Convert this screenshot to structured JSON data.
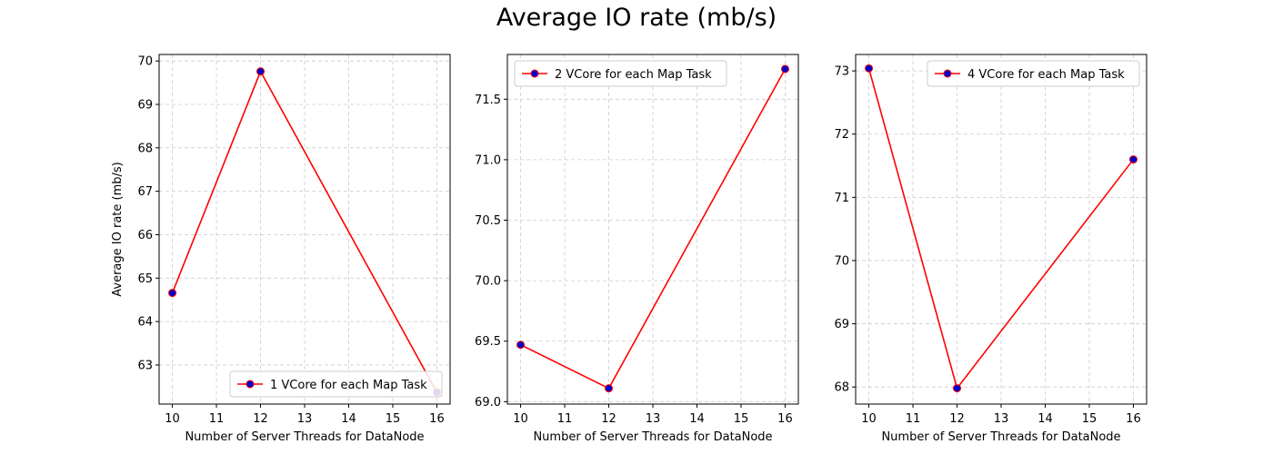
{
  "figure": {
    "suptitle": "Average IO rate (mb/s)"
  },
  "colors": {
    "line": "#ff0000",
    "marker_face": "#0000cc",
    "marker_edge": "#ff0000",
    "grid": "#cccccc"
  },
  "chart_data": [
    {
      "type": "line",
      "title": "",
      "xlabel": "Number of Server Threads for DataNode",
      "ylabel": "Average IO rate (mb/s)",
      "x": [
        10,
        12,
        16
      ],
      "xlim": [
        9.7,
        16.3
      ],
      "ylim": [
        62.1,
        70.15
      ],
      "xticks": [
        10,
        11,
        12,
        13,
        14,
        15,
        16
      ],
      "yticks": [
        63,
        64,
        65,
        66,
        67,
        68,
        69,
        70
      ],
      "grid": true,
      "legend_position": "lower-right",
      "series": [
        {
          "name": "1 VCore for each Map Task",
          "values": [
            64.66,
            69.76,
            62.37
          ]
        }
      ]
    },
    {
      "type": "line",
      "title": "",
      "xlabel": "Number of Server Threads for DataNode",
      "ylabel": "",
      "x": [
        10,
        12,
        16
      ],
      "xlim": [
        9.7,
        16.3
      ],
      "ylim": [
        68.98,
        71.87
      ],
      "xticks": [
        10,
        11,
        12,
        13,
        14,
        15,
        16
      ],
      "yticks": [
        69.0,
        69.5,
        70.0,
        70.5,
        71.0,
        71.5
      ],
      "ytick_decimals": 1,
      "grid": true,
      "legend_position": "upper-left",
      "series": [
        {
          "name": "2 VCore for each Map Task",
          "values": [
            69.47,
            69.11,
            71.75
          ]
        }
      ]
    },
    {
      "type": "line",
      "title": "",
      "xlabel": "Number of Server Threads for DataNode",
      "ylabel": "",
      "x": [
        10,
        12,
        16
      ],
      "xlim": [
        9.7,
        16.3
      ],
      "ylim": [
        67.73,
        73.26
      ],
      "xticks": [
        10,
        11,
        12,
        13,
        14,
        15,
        16
      ],
      "yticks": [
        68,
        69,
        70,
        71,
        72,
        73
      ],
      "grid": true,
      "legend_position": "upper-right",
      "series": [
        {
          "name": "4 VCore for each Map Task",
          "values": [
            73.04,
            67.98,
            71.6
          ]
        }
      ]
    }
  ]
}
